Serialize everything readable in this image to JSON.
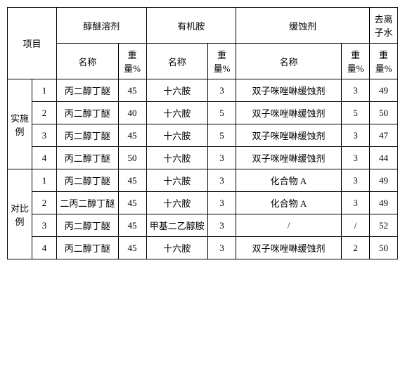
{
  "headers": {
    "project": "项目",
    "col1_group": "醇醚溶剂",
    "col2_group": "有机胺",
    "col3_group": "缓蚀剂",
    "col4_group": "去离子水",
    "name": "名称",
    "weight_pct": "重量%",
    "weight_pct_short": "重量%"
  },
  "groups": [
    {
      "label": "实施例",
      "rows": [
        {
          "n": "1",
          "c1_name": "丙二醇丁醚",
          "c1_wt": "45",
          "c2_name": "十六胺",
          "c2_wt": "3",
          "c3_name": "双子咪唑啉缓蚀剂",
          "c3_wt": "3",
          "c4_wt": "49"
        },
        {
          "n": "2",
          "c1_name": "丙二醇丁醚",
          "c1_wt": "40",
          "c2_name": "十六胺",
          "c2_wt": "5",
          "c3_name": "双子咪唑啉缓蚀剂",
          "c3_wt": "5",
          "c4_wt": "50"
        },
        {
          "n": "3",
          "c1_name": "丙二醇丁醚",
          "c1_wt": "45",
          "c2_name": "十六胺",
          "c2_wt": "5",
          "c3_name": "双子咪唑啉缓蚀剂",
          "c3_wt": "3",
          "c4_wt": "47"
        },
        {
          "n": "4",
          "c1_name": "丙二醇丁醚",
          "c1_wt": "50",
          "c2_name": "十六胺",
          "c2_wt": "3",
          "c3_name": "双子咪唑啉缓蚀剂",
          "c3_wt": "3",
          "c4_wt": "44"
        }
      ]
    },
    {
      "label": "对比例",
      "rows": [
        {
          "n": "1",
          "c1_name": "丙二醇丁醚",
          "c1_wt": "45",
          "c2_name": "十六胺",
          "c2_wt": "3",
          "c3_name": "化合物 A",
          "c3_wt": "3",
          "c4_wt": "49"
        },
        {
          "n": "2",
          "c1_name": "二丙二醇丁醚",
          "c1_wt": "45",
          "c2_name": "十六胺",
          "c2_wt": "3",
          "c3_name": "化合物 A",
          "c3_wt": "3",
          "c4_wt": "49"
        },
        {
          "n": "3",
          "c1_name": "丙二醇丁醚",
          "c1_wt": "45",
          "c2_name": "甲基二乙醇胺",
          "c2_wt": "3",
          "c3_name": "/",
          "c3_wt": "/",
          "c4_wt": "52"
        },
        {
          "n": "4",
          "c1_name": "丙二醇丁醚",
          "c1_wt": "45",
          "c2_name": "十六胺",
          "c2_wt": "3",
          "c3_name": "双子咪唑啉缓蚀剂",
          "c3_wt": "2",
          "c4_wt": "50"
        }
      ]
    }
  ],
  "style": {
    "border_color": "#000000",
    "background_color": "#ffffff",
    "text_color": "#000000",
    "font_family": "SimSun",
    "font_size_pt": 10
  }
}
